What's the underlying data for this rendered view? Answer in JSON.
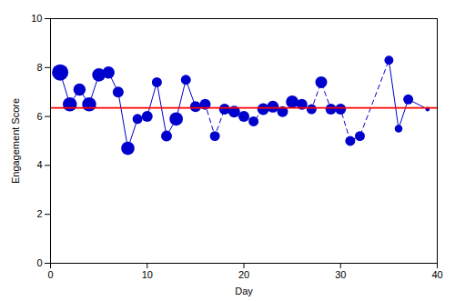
{
  "chart_data": {
    "type": "scatter",
    "x": [
      1,
      2,
      3,
      4,
      5,
      6,
      7,
      8,
      9,
      10,
      11,
      12,
      13,
      14,
      15,
      16,
      17,
      18,
      19,
      20,
      21,
      22,
      23,
      24,
      25,
      26,
      27,
      28,
      29,
      30,
      31,
      32,
      35,
      36,
      37,
      39
    ],
    "values": [
      7.8,
      6.5,
      7.1,
      6.5,
      7.7,
      7.8,
      7.0,
      4.7,
      5.9,
      6.0,
      7.4,
      5.2,
      5.9,
      7.5,
      6.4,
      6.5,
      5.2,
      6.3,
      6.2,
      6.0,
      5.8,
      6.3,
      6.4,
      6.2,
      6.6,
      6.5,
      6.3,
      7.4,
      6.3,
      6.3,
      5.0,
      5.2,
      8.3,
      5.5,
      6.7,
      6.3
    ],
    "sizes": [
      27,
      20,
      15,
      20,
      18,
      15,
      12,
      18,
      10,
      12,
      10,
      12,
      18,
      10,
      12,
      12,
      10,
      12,
      14,
      12,
      10,
      14,
      14,
      12,
      16,
      12,
      10,
      14,
      12,
      12,
      10,
      10,
      8,
      6,
      10,
      2
    ],
    "color": "#0000cc",
    "line_segments": [
      {
        "from": 1,
        "to": 15,
        "line_style": "solid"
      },
      {
        "from": 15,
        "to": 35,
        "line_style": "dashed"
      },
      {
        "from": 35,
        "to": 39,
        "line_style": "solid"
      }
    ],
    "hline": {
      "value": 6.35,
      "color": "#ff0000"
    },
    "xlabel": "Day",
    "ylabel": "Engagement Score",
    "xlim": [
      0,
      40
    ],
    "ylim": [
      0,
      10
    ],
    "xticks": [
      0,
      10,
      20,
      30,
      40
    ],
    "yticks": [
      0,
      2,
      4,
      6,
      8,
      10
    ],
    "grid": false
  }
}
